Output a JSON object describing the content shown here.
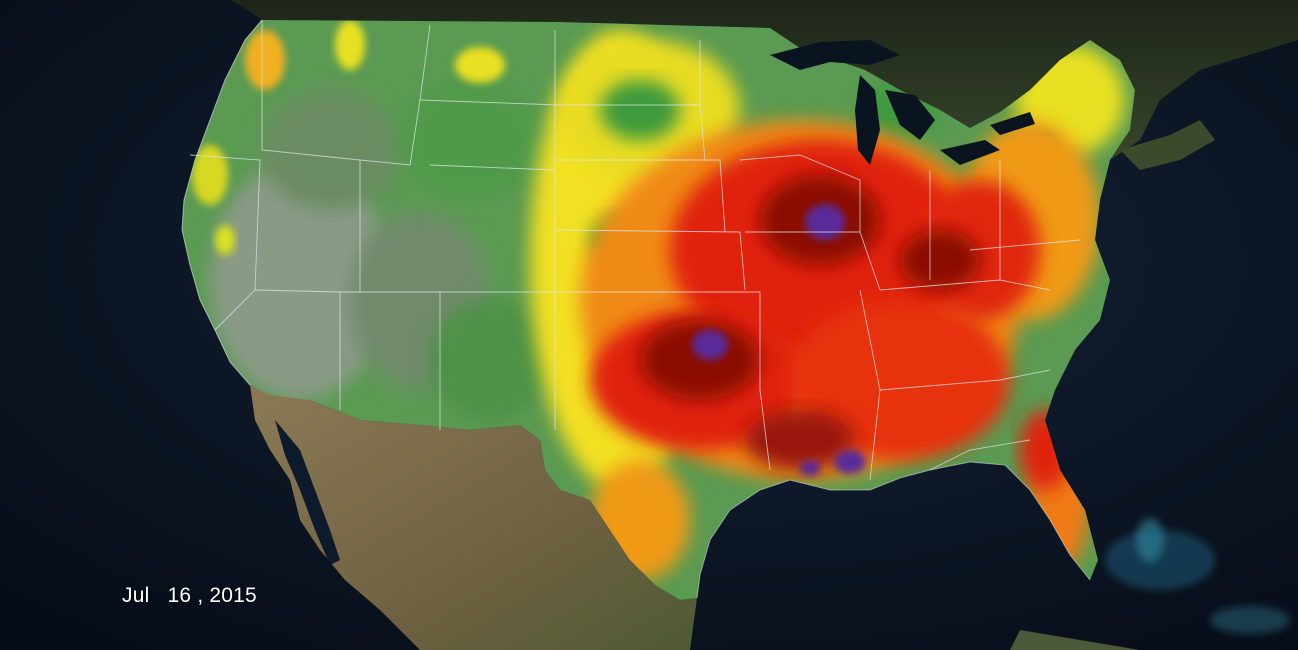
{
  "date_label": "Jul   16 , 2015",
  "colors": {
    "ocean": "#0c1626",
    "canada_land": "#2a3420",
    "mexico_land": "#7a6a48",
    "wet_green": "#4a9a4a",
    "dry_grey": "#8a9a88",
    "yellow": "#f4e41c",
    "orange": "#f08a18",
    "red": "#e0200e",
    "dark_red": "#8a0a06",
    "purple": "#5a2a9a",
    "great_lakes": "#0a1420",
    "state_borders": "#dfe7ea"
  }
}
